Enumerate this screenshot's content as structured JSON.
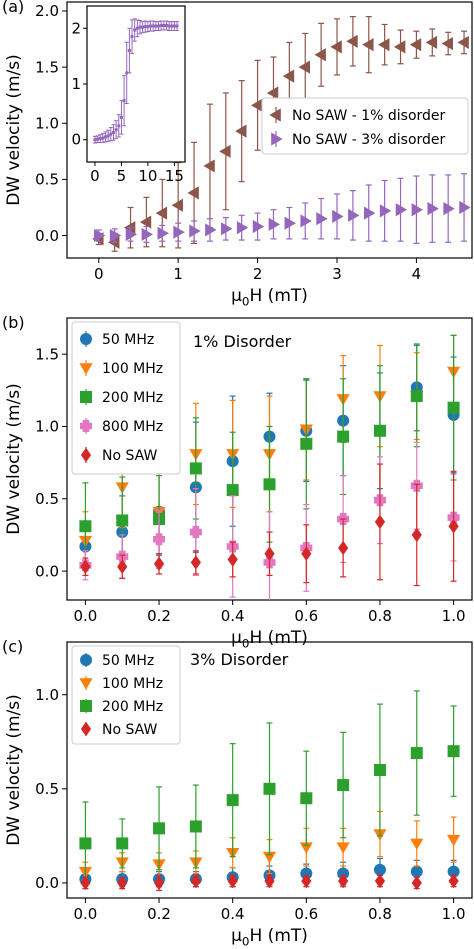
{
  "chart_data": [
    {
      "panel_label": "(a)",
      "type": "scatter",
      "xlabel": "μ0H (mT)",
      "ylabel": "DW velocity (m/s)",
      "xlim": [
        -0.4,
        4.7
      ],
      "ylim": [
        -0.2,
        2.08
      ],
      "xticks": [
        0,
        1,
        2,
        3,
        4
      ],
      "yticks": [
        0.0,
        0.5,
        1.0,
        1.5,
        2.0
      ],
      "ytick_labels": [
        "0.0",
        "0.5",
        "1.0",
        "1.5",
        "2.0"
      ],
      "legend": {
        "position": "center-right"
      },
      "series": [
        {
          "name": "No SAW - 1% disorder",
          "color": "#8c564b",
          "marker": "triangle-left",
          "x": [
            0.0,
            0.2,
            0.4,
            0.6,
            0.8,
            1.0,
            1.2,
            1.4,
            1.6,
            1.8,
            2.0,
            2.2,
            2.4,
            2.6,
            2.8,
            3.0,
            3.2,
            3.4,
            3.6,
            3.8,
            4.0,
            4.2,
            4.4,
            4.6
          ],
          "y": [
            -0.03,
            -0.06,
            0.07,
            0.12,
            0.2,
            0.27,
            0.38,
            0.62,
            0.75,
            0.93,
            1.16,
            1.27,
            1.42,
            1.5,
            1.61,
            1.68,
            1.73,
            1.7,
            1.7,
            1.68,
            1.7,
            1.72,
            1.71,
            1.72
          ],
          "err": [
            0.05,
            0.08,
            0.18,
            0.22,
            0.3,
            0.38,
            0.45,
            0.55,
            0.52,
            0.45,
            0.4,
            0.32,
            0.3,
            0.3,
            0.28,
            0.25,
            0.22,
            0.25,
            0.18,
            0.15,
            0.12,
            0.12,
            0.1,
            0.1
          ]
        },
        {
          "name": "No SAW - 3% disorder",
          "color": "#9467bd",
          "marker": "triangle-right",
          "x": [
            0.0,
            0.2,
            0.4,
            0.6,
            0.8,
            1.0,
            1.2,
            1.4,
            1.6,
            1.8,
            2.0,
            2.2,
            2.4,
            2.6,
            2.8,
            3.0,
            3.2,
            3.4,
            3.6,
            3.8,
            4.0,
            4.2,
            4.4,
            4.6
          ],
          "y": [
            0.0,
            0.0,
            0.01,
            0.01,
            0.02,
            0.03,
            0.04,
            0.05,
            0.06,
            0.07,
            0.08,
            0.1,
            0.11,
            0.13,
            0.15,
            0.17,
            0.18,
            0.2,
            0.22,
            0.23,
            0.23,
            0.24,
            0.24,
            0.25
          ],
          "err": [
            0.05,
            0.06,
            0.06,
            0.07,
            0.07,
            0.08,
            0.09,
            0.1,
            0.1,
            0.11,
            0.12,
            0.13,
            0.14,
            0.16,
            0.18,
            0.2,
            0.22,
            0.25,
            0.27,
            0.28,
            0.3,
            0.3,
            0.3,
            0.3
          ]
        }
      ],
      "inset": {
        "xlim": [
          -1.5,
          17
        ],
        "ylim": [
          -0.4,
          2.4
        ],
        "xticks": [
          0,
          5,
          10,
          15
        ],
        "yticks": [
          0,
          1,
          2
        ],
        "ytick_labels": [
          "0",
          "1",
          "2"
        ],
        "series": [
          {
            "color": "#9467bd",
            "x": [
              0,
              0.5,
              1,
              1.5,
              2,
              2.5,
              3,
              3.5,
              4,
              4.5,
              5,
              5.5,
              6,
              6.5,
              7,
              7.5,
              8,
              8.5,
              9,
              9.5,
              10,
              10.5,
              11,
              11.5,
              12,
              12.5,
              13,
              13.5,
              14,
              14.5,
              15,
              15.5
            ],
            "y": [
              0.0,
              0.01,
              0.02,
              0.03,
              0.05,
              0.07,
              0.1,
              0.13,
              0.18,
              0.25,
              0.4,
              0.7,
              1.2,
              1.6,
              1.85,
              1.97,
              2.0,
              2.02,
              2.02,
              2.03,
              2.03,
              2.04,
              2.04,
              2.04,
              2.04,
              2.05,
              2.05,
              2.05,
              2.04,
              2.04,
              2.04,
              2.04
            ],
            "err": [
              0.06,
              0.06,
              0.07,
              0.08,
              0.09,
              0.1,
              0.12,
              0.14,
              0.16,
              0.2,
              0.3,
              0.45,
              0.55,
              0.4,
              0.3,
              0.2,
              0.15,
              0.12,
              0.1,
              0.1,
              0.09,
              0.09,
              0.09,
              0.08,
              0.08,
              0.08,
              0.08,
              0.08,
              0.08,
              0.08,
              0.08,
              0.08
            ]
          }
        ]
      }
    },
    {
      "panel_label": "(b)",
      "type": "scatter",
      "title": "1% Disorder",
      "xlabel": "μ0H (mT)",
      "ylabel": "DW velocity (m/s)",
      "xlim": [
        -0.05,
        1.05
      ],
      "ylim": [
        -0.2,
        1.75
      ],
      "xticks": [
        0.0,
        0.2,
        0.4,
        0.6,
        0.8,
        1.0
      ],
      "xtick_labels": [
        "0.0",
        "0.2",
        "0.4",
        "0.6",
        "0.8",
        "1.0"
      ],
      "yticks": [
        0.0,
        0.5,
        1.0,
        1.5
      ],
      "ytick_labels": [
        "0.0",
        "0.5",
        "1.0",
        "1.5"
      ],
      "legend": {
        "position": "top-left"
      },
      "series": [
        {
          "name": "50 MHz",
          "color": "#1f77b4",
          "marker": "circle",
          "x": [
            0.0,
            0.1,
            0.2,
            0.3,
            0.4,
            0.5,
            0.6,
            0.7,
            0.8,
            0.9,
            1.0
          ],
          "y": [
            0.17,
            0.27,
            0.41,
            0.58,
            0.76,
            0.93,
            0.97,
            1.04,
            0.97,
            1.27,
            1.08
          ],
          "err": [
            0.15,
            0.25,
            0.3,
            0.45,
            0.45,
            0.3,
            0.35,
            0.38,
            0.4,
            0.3,
            0.4
          ]
        },
        {
          "name": "100 MHz",
          "color": "#ff7f0e",
          "marker": "triangle-down",
          "x": [
            0.0,
            0.1,
            0.2,
            0.3,
            0.4,
            0.5,
            0.6,
            0.7,
            0.8,
            0.9,
            1.0
          ],
          "y": [
            0.21,
            0.58,
            0.41,
            0.81,
            0.81,
            0.81,
            0.98,
            1.19,
            1.21,
            1.21,
            1.38
          ],
          "err": [
            0.2,
            0.28,
            0.35,
            0.35,
            0.37,
            0.4,
            0.35,
            0.3,
            0.35,
            0.3,
            0.25
          ]
        },
        {
          "name": "200 MHz",
          "color": "#2ca02c",
          "marker": "square",
          "x": [
            0.0,
            0.1,
            0.2,
            0.3,
            0.4,
            0.5,
            0.6,
            0.7,
            0.8,
            0.9,
            1.0
          ],
          "y": [
            0.31,
            0.35,
            0.36,
            0.71,
            0.56,
            0.6,
            0.88,
            0.93,
            0.97,
            1.21,
            1.13
          ],
          "err": [
            0.3,
            0.3,
            0.3,
            0.35,
            0.4,
            0.4,
            0.45,
            0.4,
            0.45,
            0.35,
            0.5
          ]
        },
        {
          "name": "800 MHz",
          "color": "#e377c2",
          "marker": "plus-filled",
          "x": [
            0.0,
            0.1,
            0.2,
            0.3,
            0.4,
            0.5,
            0.6,
            0.7,
            0.8,
            0.9,
            1.0
          ],
          "y": [
            0.04,
            0.1,
            0.22,
            0.27,
            0.17,
            0.06,
            0.16,
            0.36,
            0.49,
            0.59,
            0.37
          ],
          "err": [
            0.1,
            0.15,
            0.2,
            0.3,
            0.35,
            0.35,
            0.3,
            0.3,
            0.3,
            0.3,
            0.3
          ]
        },
        {
          "name": "No SAW",
          "color": "#d62728",
          "marker": "diamond",
          "x": [
            0.0,
            0.1,
            0.2,
            0.3,
            0.4,
            0.5,
            0.6,
            0.7,
            0.8,
            0.9,
            1.0
          ],
          "y": [
            0.03,
            0.03,
            0.05,
            0.06,
            0.08,
            0.12,
            0.12,
            0.16,
            0.34,
            0.25,
            0.31
          ],
          "err": [
            0.06,
            0.08,
            0.07,
            0.08,
            0.12,
            0.15,
            0.2,
            0.2,
            0.4,
            0.35,
            0.38
          ]
        }
      ]
    },
    {
      "panel_label": "(c)",
      "type": "scatter",
      "title": "3% Disorder",
      "xlabel": "μ0H (mT)",
      "ylabel": "DW velocity (m/s)",
      "xlim": [
        -0.05,
        1.05
      ],
      "ylim": [
        -0.08,
        1.28
      ],
      "xticks": [
        0.0,
        0.2,
        0.4,
        0.6,
        0.8,
        1.0
      ],
      "xtick_labels": [
        "0.0",
        "0.2",
        "0.4",
        "0.6",
        "0.8",
        "1.0"
      ],
      "yticks": [
        0.0,
        0.5,
        1.0
      ],
      "ytick_labels": [
        "0.0",
        "0.5",
        "1.0"
      ],
      "legend": {
        "position": "top-left"
      },
      "series": [
        {
          "name": "50 MHz",
          "color": "#1f77b4",
          "marker": "circle",
          "x": [
            0.0,
            0.1,
            0.2,
            0.3,
            0.4,
            0.5,
            0.6,
            0.7,
            0.8,
            0.9,
            1.0
          ],
          "y": [
            0.02,
            0.02,
            0.02,
            0.02,
            0.03,
            0.04,
            0.05,
            0.05,
            0.07,
            0.06,
            0.06
          ],
          "err": [
            0.05,
            0.04,
            0.04,
            0.04,
            0.05,
            0.05,
            0.05,
            0.06,
            0.06,
            0.06,
            0.06
          ]
        },
        {
          "name": "100 MHz",
          "color": "#ff7f0e",
          "marker": "triangle-down",
          "x": [
            0.0,
            0.1,
            0.2,
            0.3,
            0.4,
            0.5,
            0.6,
            0.7,
            0.8,
            0.9,
            1.0
          ],
          "y": [
            0.06,
            0.11,
            0.1,
            0.11,
            0.16,
            0.14,
            0.19,
            0.19,
            0.26,
            0.21,
            0.23
          ],
          "err": [
            0.05,
            0.05,
            0.06,
            0.06,
            0.08,
            0.09,
            0.1,
            0.1,
            0.12,
            0.12,
            0.12
          ]
        },
        {
          "name": "200 MHz",
          "color": "#2ca02c",
          "marker": "square",
          "x": [
            0.0,
            0.1,
            0.2,
            0.3,
            0.4,
            0.5,
            0.6,
            0.7,
            0.8,
            0.9,
            1.0
          ],
          "y": [
            0.21,
            0.21,
            0.29,
            0.3,
            0.44,
            0.5,
            0.45,
            0.52,
            0.6,
            0.69,
            0.7
          ],
          "err": [
            0.22,
            0.13,
            0.22,
            0.22,
            0.3,
            0.35,
            0.25,
            0.28,
            0.35,
            0.33,
            0.24
          ]
        },
        {
          "name": "No SAW",
          "color": "#d62728",
          "marker": "diamond",
          "x": [
            0.0,
            0.1,
            0.2,
            0.3,
            0.4,
            0.5,
            0.6,
            0.7,
            0.8,
            0.9,
            1.0
          ],
          "y": [
            0.0,
            0.0,
            0.0,
            0.01,
            0.01,
            0.01,
            0.01,
            0.01,
            0.01,
            0.0,
            0.01
          ],
          "err": [
            0.03,
            0.03,
            0.04,
            0.03,
            0.03,
            0.03,
            0.03,
            0.03,
            0.03,
            0.03,
            0.03
          ]
        }
      ]
    }
  ]
}
